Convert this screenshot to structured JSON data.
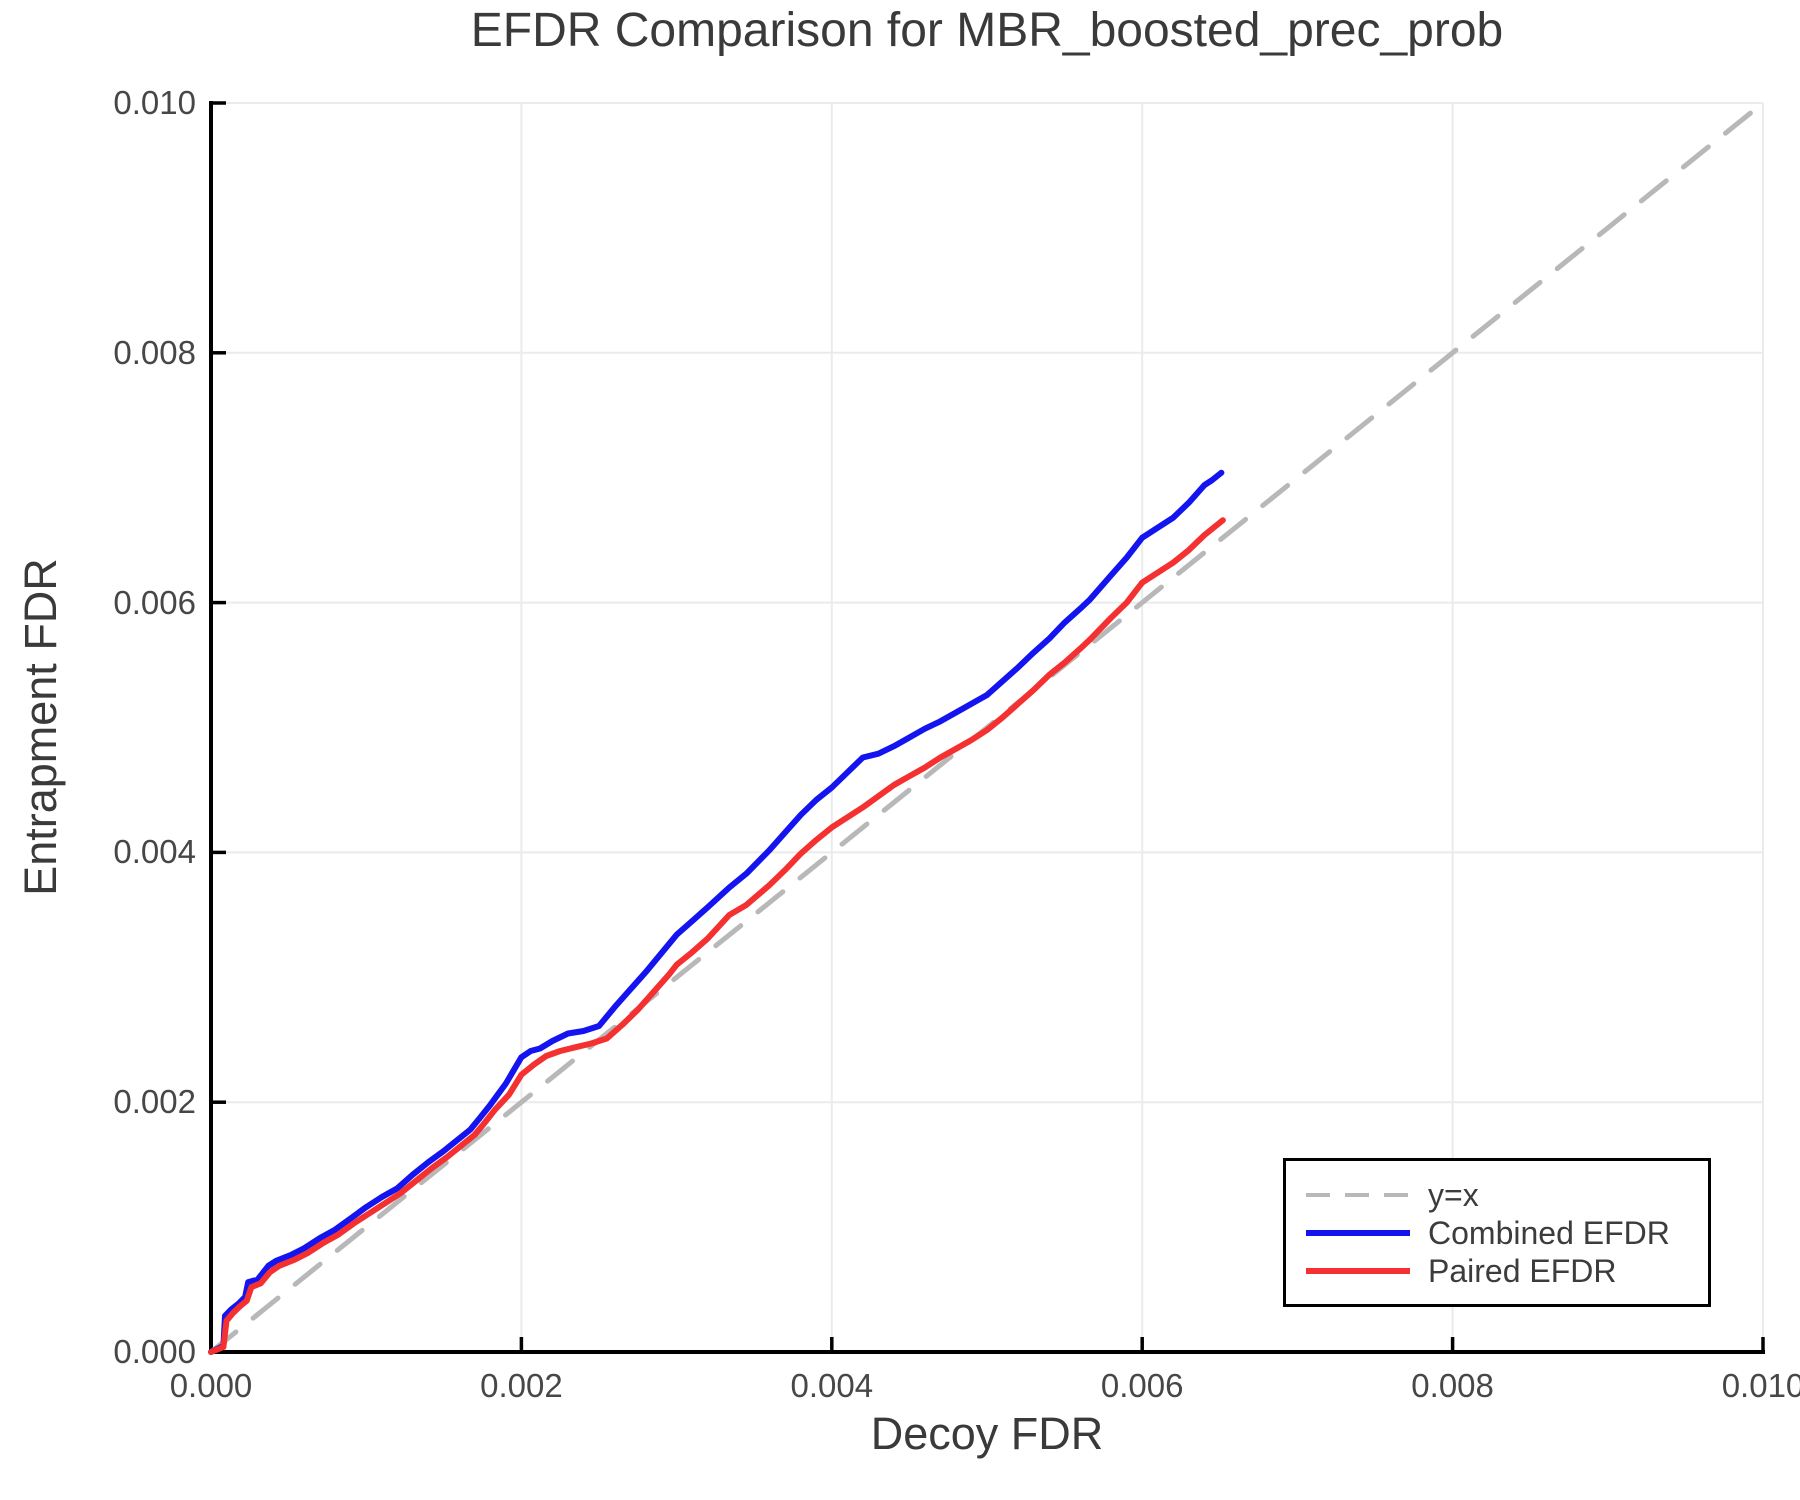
{
  "chart_data": {
    "type": "line",
    "title": "EFDR Comparison for MBR_boosted_prec_prob",
    "xlabel": "Decoy FDR",
    "ylabel": "Entrapment FDR",
    "xlim": [
      0,
      0.01
    ],
    "ylim": [
      0,
      0.01
    ],
    "grid": true,
    "grid_color": "#ebebeb",
    "spine_color": "#000000",
    "tick_text_color": "#474747",
    "title_color": "#3a3a3a",
    "legend_position": "lower right",
    "xticks": {
      "values": [
        0,
        0.002,
        0.004,
        0.006,
        0.008,
        0.01
      ],
      "labels": [
        "0.000",
        "0.002",
        "0.004",
        "0.006",
        "0.008",
        "0.010"
      ]
    },
    "yticks": {
      "values": [
        0,
        0.002,
        0.004,
        0.006,
        0.008,
        0.01
      ],
      "labels": [
        "0.000",
        "0.002",
        "0.004",
        "0.006",
        "0.008",
        "0.010"
      ]
    },
    "series": [
      {
        "name": "y=x",
        "color": "#b8b8b8",
        "style": "dashed",
        "x": [
          0,
          0.01
        ],
        "y": [
          0,
          0.01
        ]
      },
      {
        "name": "Combined EFDR",
        "color": "#1414f0",
        "style": "solid",
        "x": [
          0,
          8e-05,
          9e-05,
          0.00013,
          0.00018,
          0.00022,
          0.00024,
          0.0003,
          0.00037,
          0.00042,
          0.00052,
          0.0006,
          0.0007,
          0.0008,
          0.0009,
          0.001,
          0.0011,
          0.0012,
          0.0013,
          0.0014,
          0.0015,
          0.0016,
          0.00167,
          0.00173,
          0.0018,
          0.0019,
          0.002,
          0.00206,
          0.00212,
          0.0022,
          0.0023,
          0.0024,
          0.0025,
          0.0026,
          0.0027,
          0.0028,
          0.0029,
          0.003,
          0.0031,
          0.0032,
          0.00334,
          0.00345,
          0.0036,
          0.0037,
          0.0038,
          0.0039,
          0.004,
          0.0041,
          0.0042,
          0.0043,
          0.0044,
          0.0045,
          0.0046,
          0.0047,
          0.0048,
          0.0049,
          0.005,
          0.0051,
          0.0052,
          0.0053,
          0.0054,
          0.0055,
          0.0056,
          0.00566,
          0.0058,
          0.0059,
          0.006,
          0.0061,
          0.0062,
          0.0063,
          0.0064,
          0.00645,
          0.00651
        ],
        "y": [
          0,
          5e-05,
          0.00029,
          0.00034,
          0.00039,
          0.00044,
          0.00056,
          0.00058,
          0.00069,
          0.00073,
          0.00078,
          0.00083,
          0.00091,
          0.00098,
          0.00107,
          0.00116,
          0.00124,
          0.00131,
          0.00142,
          0.00152,
          0.00161,
          0.00171,
          0.00178,
          0.00187,
          0.00198,
          0.00215,
          0.00236,
          0.00241,
          0.00243,
          0.00249,
          0.00255,
          0.00257,
          0.00261,
          0.00276,
          0.0029,
          0.00304,
          0.00319,
          0.00334,
          0.00345,
          0.00356,
          0.00372,
          0.00383,
          0.00402,
          0.00416,
          0.0043,
          0.00442,
          0.00452,
          0.00464,
          0.00476,
          0.00479,
          0.00485,
          0.00492,
          0.00499,
          0.00505,
          0.00512,
          0.00519,
          0.00526,
          0.00537,
          0.00548,
          0.0056,
          0.00571,
          0.00584,
          0.00595,
          0.00602,
          0.00622,
          0.00636,
          0.00652,
          0.0066,
          0.00668,
          0.0068,
          0.00694,
          0.00698,
          0.00704
        ]
      },
      {
        "name": "Paired EFDR",
        "color": "#f53030",
        "style": "solid",
        "x": [
          0,
          8e-05,
          0.0001,
          0.00014,
          0.00019,
          0.00023,
          0.00026,
          0.00032,
          0.00038,
          0.00044,
          0.00054,
          0.00062,
          0.00072,
          0.00082,
          0.00092,
          0.00102,
          0.00112,
          0.00122,
          0.00132,
          0.00142,
          0.00152,
          0.00162,
          0.0017,
          0.00176,
          0.00183,
          0.00192,
          0.002,
          0.00208,
          0.00216,
          0.00225,
          0.00235,
          0.00245,
          0.00255,
          0.00265,
          0.00275,
          0.00285,
          0.00295,
          0.003,
          0.0031,
          0.0032,
          0.00334,
          0.00345,
          0.0036,
          0.0037,
          0.0038,
          0.0039,
          0.004,
          0.0041,
          0.0042,
          0.0043,
          0.0044,
          0.0045,
          0.0046,
          0.0047,
          0.0048,
          0.0049,
          0.005,
          0.0051,
          0.0052,
          0.0053,
          0.0054,
          0.0055,
          0.0056,
          0.00566,
          0.0058,
          0.0059,
          0.006,
          0.0061,
          0.0062,
          0.0063,
          0.0064,
          0.00646,
          0.00652
        ],
        "y": [
          0,
          4e-05,
          0.00025,
          0.00031,
          0.00037,
          0.00041,
          0.00052,
          0.00055,
          0.00064,
          0.00069,
          0.00074,
          0.00079,
          0.00087,
          0.00094,
          0.00103,
          0.00111,
          0.00119,
          0.00127,
          0.00137,
          0.00147,
          0.00156,
          0.00166,
          0.00174,
          0.00183,
          0.00194,
          0.00206,
          0.00222,
          0.0023,
          0.00237,
          0.00241,
          0.00244,
          0.00247,
          0.00251,
          0.00262,
          0.00274,
          0.00288,
          0.00302,
          0.0031,
          0.0032,
          0.00331,
          0.0035,
          0.00358,
          0.00374,
          0.00386,
          0.00399,
          0.0041,
          0.0042,
          0.00428,
          0.00436,
          0.00445,
          0.00454,
          0.00461,
          0.00468,
          0.00476,
          0.00483,
          0.0049,
          0.00498,
          0.00508,
          0.00519,
          0.0053,
          0.00542,
          0.00552,
          0.00563,
          0.0057,
          0.00588,
          0.006,
          0.00616,
          0.00624,
          0.00632,
          0.00642,
          0.00654,
          0.0066,
          0.00666
        ]
      }
    ]
  },
  "legend": {
    "dash_pattern": "24 15"
  }
}
